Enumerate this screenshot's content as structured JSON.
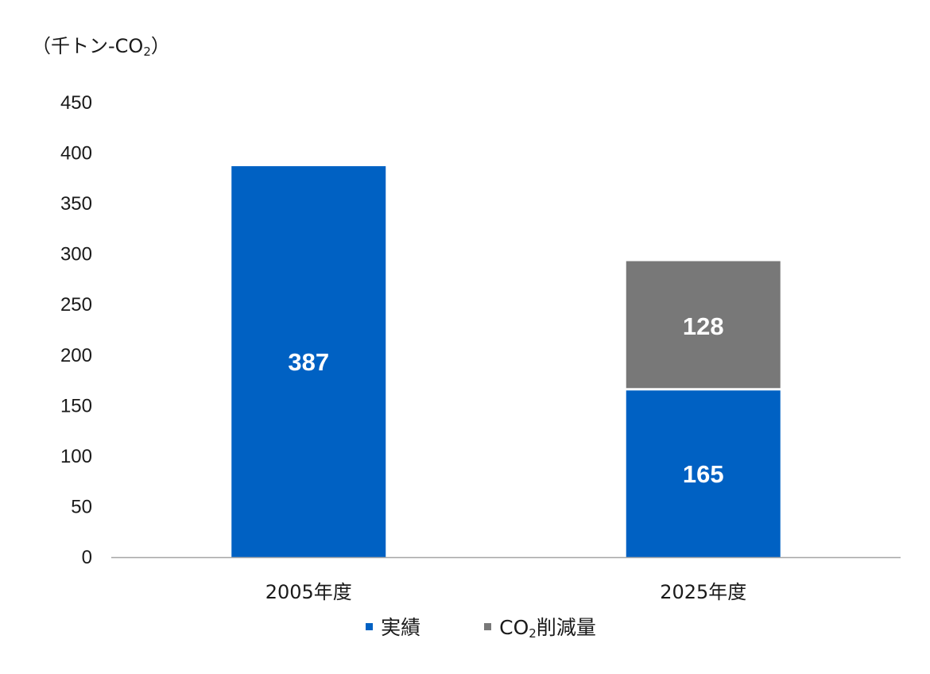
{
  "chart_data": {
    "type": "bar",
    "stacked": true,
    "unit_label": {
      "prefix": "（千トン-CO",
      "sub": "2",
      "suffix": "）"
    },
    "categories": [
      "2005年度",
      "2025年度"
    ],
    "series": [
      {
        "name": "実績",
        "values": [
          387,
          165
        ],
        "color": "#0061c3"
      },
      {
        "name": "CO2削減量",
        "values": [
          0,
          128
        ],
        "color": "#787878"
      }
    ],
    "data_labels": [
      "387",
      "165",
      "",
      "128"
    ],
    "ylim": [
      0,
      450
    ],
    "yticks": [
      "0",
      "50",
      "100",
      "150",
      "200",
      "250",
      "300",
      "350",
      "400",
      "450"
    ],
    "grid": false,
    "legend": {
      "position": "bottom",
      "items": [
        {
          "label": "実績",
          "color": "#0061c3"
        },
        {
          "prefix": "CO",
          "sub": "2",
          "suffix": "削減量",
          "color": "#787878"
        }
      ]
    }
  }
}
